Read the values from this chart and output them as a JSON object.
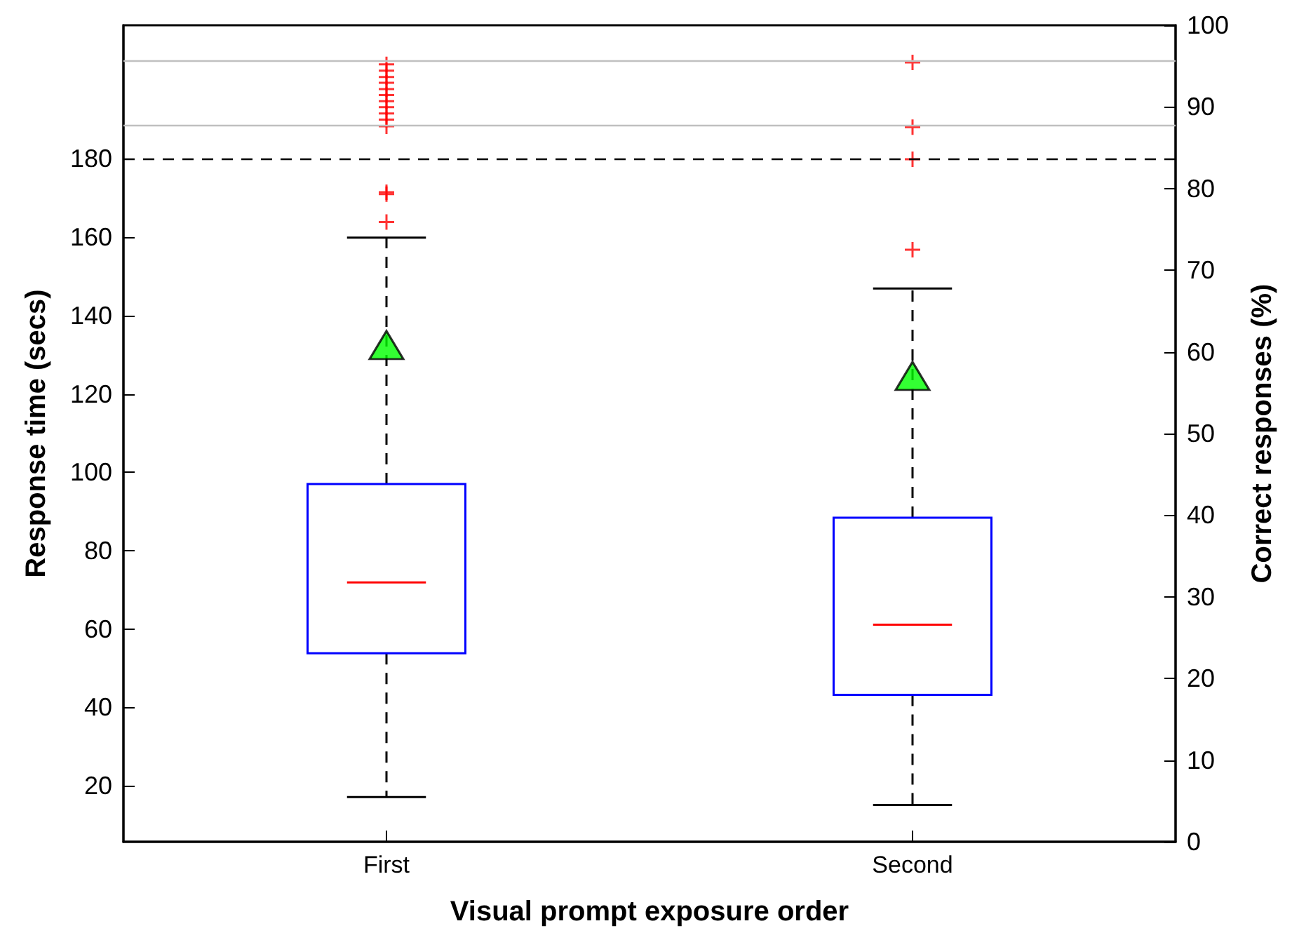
{
  "chart_data": {
    "type": "box",
    "xlabel": "Visual prompt exposure order",
    "ylabel": "Response time (secs)",
    "y2label": "Correct responses (%)",
    "categories": [
      "First",
      "Second"
    ],
    "color": "#0000ff",
    "boxes": [
      {
        "low": 17.1,
        "q1": 53.8,
        "median": 71.9,
        "q3": 97.0,
        "high": 159.9,
        "mean": 132.5,
        "outliers": [
          163.9,
          171.5,
          171.0,
          188.3,
          190.0,
          191.6,
          193.2,
          194.7,
          196.3,
          197.8,
          199.4,
          200.9,
          202.5,
          204.1
        ]
      },
      {
        "low": 15.1,
        "q1": 43.2,
        "median": 61.1,
        "q3": 88.4,
        "high": 146.9,
        "mean": 124.6,
        "outliers": [
          156.8,
          179.9,
          188.1,
          204.6
        ]
      }
    ],
    "ylim": [
      5.7,
      214.1
    ],
    "yticks": [
      20,
      40,
      60,
      80,
      100,
      120,
      140,
      160,
      180
    ],
    "y2lim": [
      0,
      100
    ],
    "y2ticks": [
      0,
      10,
      20,
      30,
      40,
      50,
      60,
      70,
      80,
      90,
      100
    ],
    "ref_lines": [
      {
        "axis": "y",
        "value": 180,
        "color": "#000000",
        "line_style": "dashed"
      },
      {
        "axis": "y2",
        "value": 95.6,
        "color": "#c0c0c0",
        "line_style": "solid"
      },
      {
        "axis": "y2",
        "value": 87.7,
        "color": "#c0c0c0",
        "line_style": "solid"
      }
    ]
  }
}
